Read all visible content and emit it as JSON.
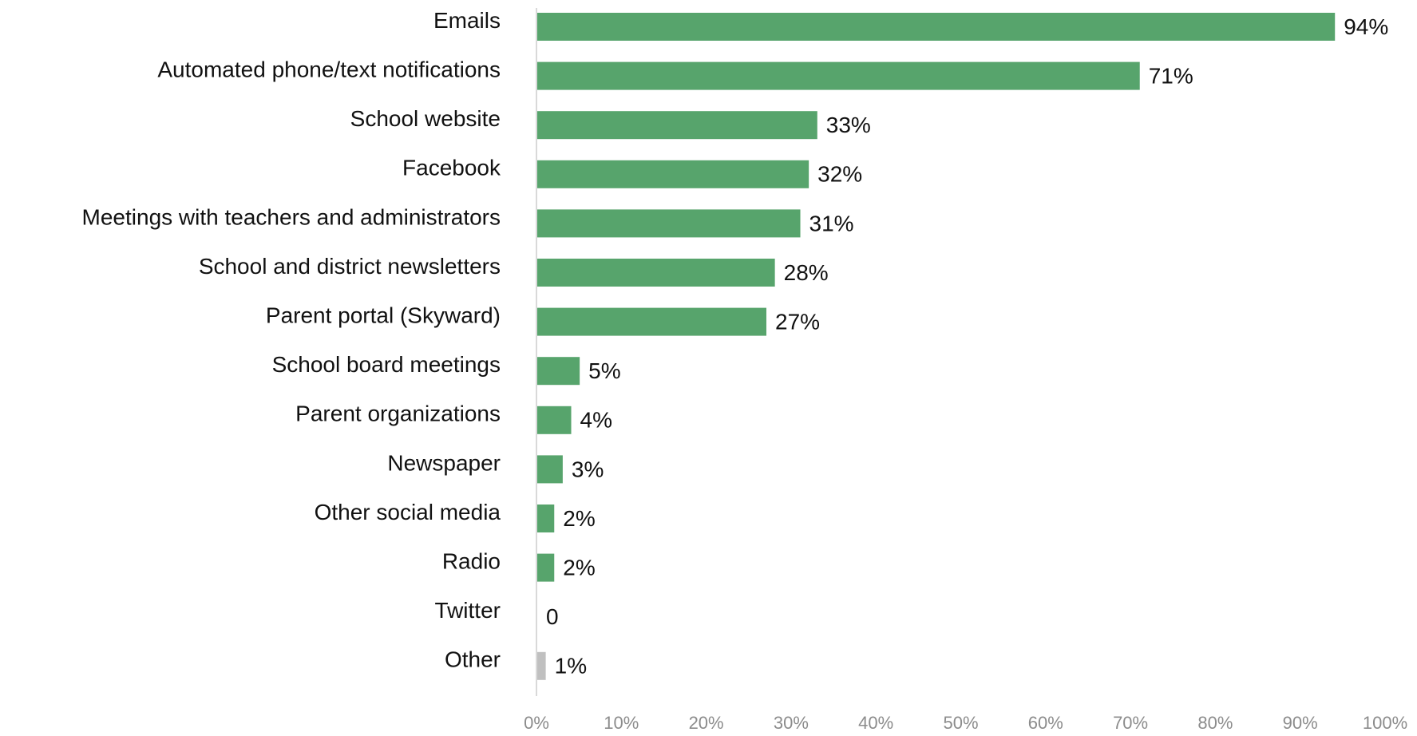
{
  "chart_data": {
    "type": "bar",
    "orientation": "horizontal",
    "categories": [
      "Emails",
      "Automated phone/text notifications",
      "School website",
      "Facebook",
      "Meetings with teachers and administrators",
      "School and district newsletters",
      "Parent portal (Skyward)",
      "School board meetings",
      "Parent organizations",
      "Newspaper",
      "Other social media",
      "Radio",
      "Twitter",
      "Other"
    ],
    "values": [
      94,
      71,
      33,
      32,
      31,
      28,
      27,
      5,
      4,
      3,
      2,
      2,
      0,
      1
    ],
    "value_labels": [
      "94%",
      "71%",
      "33%",
      "32%",
      "31%",
      "28%",
      "27%",
      "5%",
      "4%",
      "3%",
      "2%",
      "2%",
      "0",
      "1%"
    ],
    "xlim": [
      0,
      100
    ],
    "x_ticks": [
      "0%",
      "10%",
      "20%",
      "30%",
      "40%",
      "50%",
      "60%",
      "70%",
      "80%",
      "90%",
      "100%"
    ],
    "grid": false,
    "legend": "none",
    "colors": {
      "bar": "#57a46c",
      "other_bar": "#c0c0c0",
      "axis": "#d9d9d9",
      "tick_text": "#8c8c8c",
      "label_text": "#111111"
    }
  }
}
